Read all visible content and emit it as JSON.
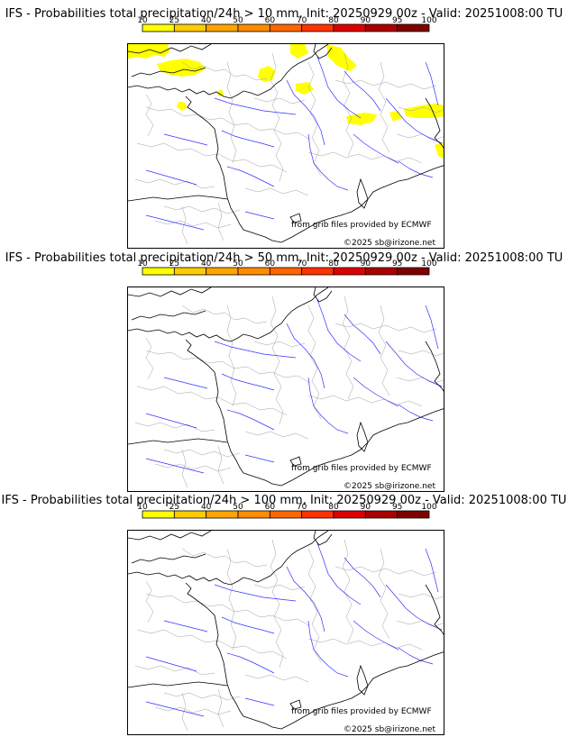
{
  "panels": [
    {
      "title": "IFS - Probabilities total precipitation/24h > 10 mm, Init: 20250929 00z - Valid: 20251008:00 TU",
      "credit_source": "from grib files provided by ECMWF",
      "credit_copyright": "©2025 sb@irizone.net",
      "has_precip_areas": true
    },
    {
      "title": "IFS - Probabilities total precipitation/24h > 50 mm, Init: 20250929 00z - Valid: 20251008:00 TU",
      "credit_source": "from grib files provided by ECMWF",
      "credit_copyright": "©2025 sb@irizone.net",
      "has_precip_areas": false
    },
    {
      "title": "IFS - Probabilities total precipitation/24h > 100 mm, Init: 20250929 00z - Valid: 20251008:00 TU",
      "credit_source": "from grib files provided by ECMWF",
      "credit_copyright": "©2025 sb@irizone.net",
      "has_precip_areas": false
    }
  ],
  "legend": {
    "ticks": [
      "10",
      "25",
      "40",
      "50",
      "60",
      "70",
      "80",
      "90",
      "95",
      "100"
    ],
    "colors": [
      "#ffff00",
      "#ffcc00",
      "#ffa500",
      "#ff8c00",
      "#ff6600",
      "#ff3300",
      "#dd0000",
      "#aa0000",
      "#800000"
    ]
  },
  "map_colors": {
    "coast": "#000000",
    "borders": "#a0a0a0",
    "rivers": "#3333ff",
    "precip": "#ffff00"
  }
}
